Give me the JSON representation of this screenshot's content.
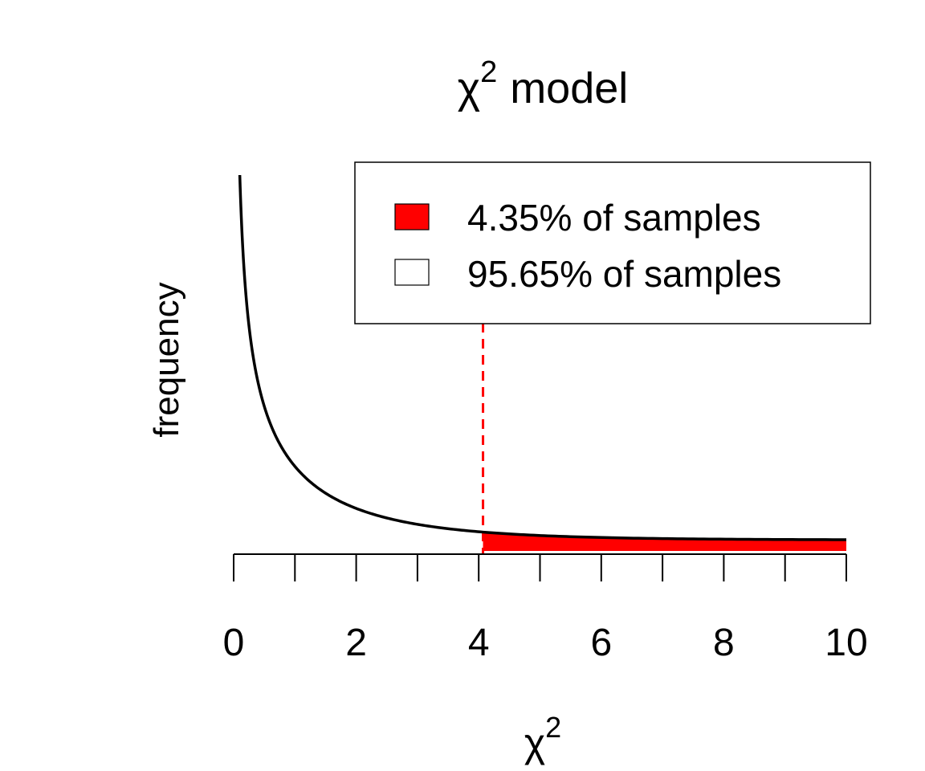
{
  "chart_data": {
    "type": "area",
    "title": {
      "symbol": "χ",
      "sup": "2",
      "text": "model"
    },
    "xlabel": {
      "symbol": "χ",
      "sup": "2"
    },
    "ylabel": "frequency",
    "x_range": [
      0,
      10
    ],
    "x_ticks": [
      0,
      1,
      2,
      3,
      4,
      5,
      6,
      7,
      8,
      9,
      10
    ],
    "x_tick_labels": [
      {
        "value": 0,
        "label": "0"
      },
      {
        "value": 2,
        "label": "2"
      },
      {
        "value": 4,
        "label": "4"
      },
      {
        "value": 6,
        "label": "6"
      },
      {
        "value": 8,
        "label": "8"
      },
      {
        "value": 10,
        "label": "10"
      }
    ],
    "y_axis_shown": false,
    "curve": {
      "distribution": "chi-square",
      "df": 1,
      "x_start": 0.1,
      "x_end": 10,
      "color": "#000000"
    },
    "critical_value": 4.07,
    "shaded_region": {
      "from": 4.07,
      "to": 10,
      "color": "#ff0000"
    },
    "cutoff_line_color": "#ff0000",
    "legend": {
      "position": "top-right",
      "entries": [
        {
          "label": "4.35% of samples",
          "fill": "#ff0000"
        },
        {
          "label": "95.65% of samples",
          "fill": "#ffffff"
        }
      ]
    }
  }
}
